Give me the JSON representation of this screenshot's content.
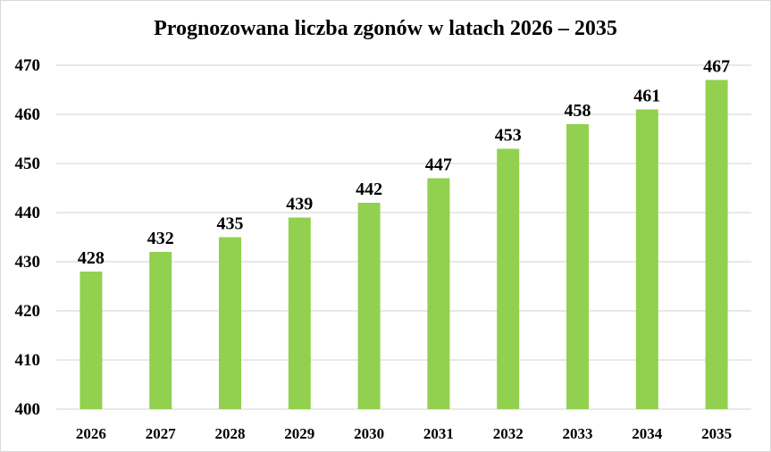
{
  "chart_data": {
    "type": "bar",
    "title": "Prognozowana liczba zgonów w latach 2026 – 2035",
    "categories": [
      "2026",
      "2027",
      "2028",
      "2029",
      "2030",
      "2031",
      "2032",
      "2033",
      "2034",
      "2035"
    ],
    "values": [
      428,
      432,
      435,
      439,
      442,
      447,
      453,
      458,
      461,
      467
    ],
    "xlabel": "",
    "ylabel": "",
    "ylim": [
      400,
      470
    ],
    "yticks": [
      400,
      410,
      420,
      430,
      440,
      450,
      460,
      470
    ],
    "grid": true,
    "legend": "none",
    "bar_color": "#92D050",
    "grid_color": "#d9d9d9"
  }
}
